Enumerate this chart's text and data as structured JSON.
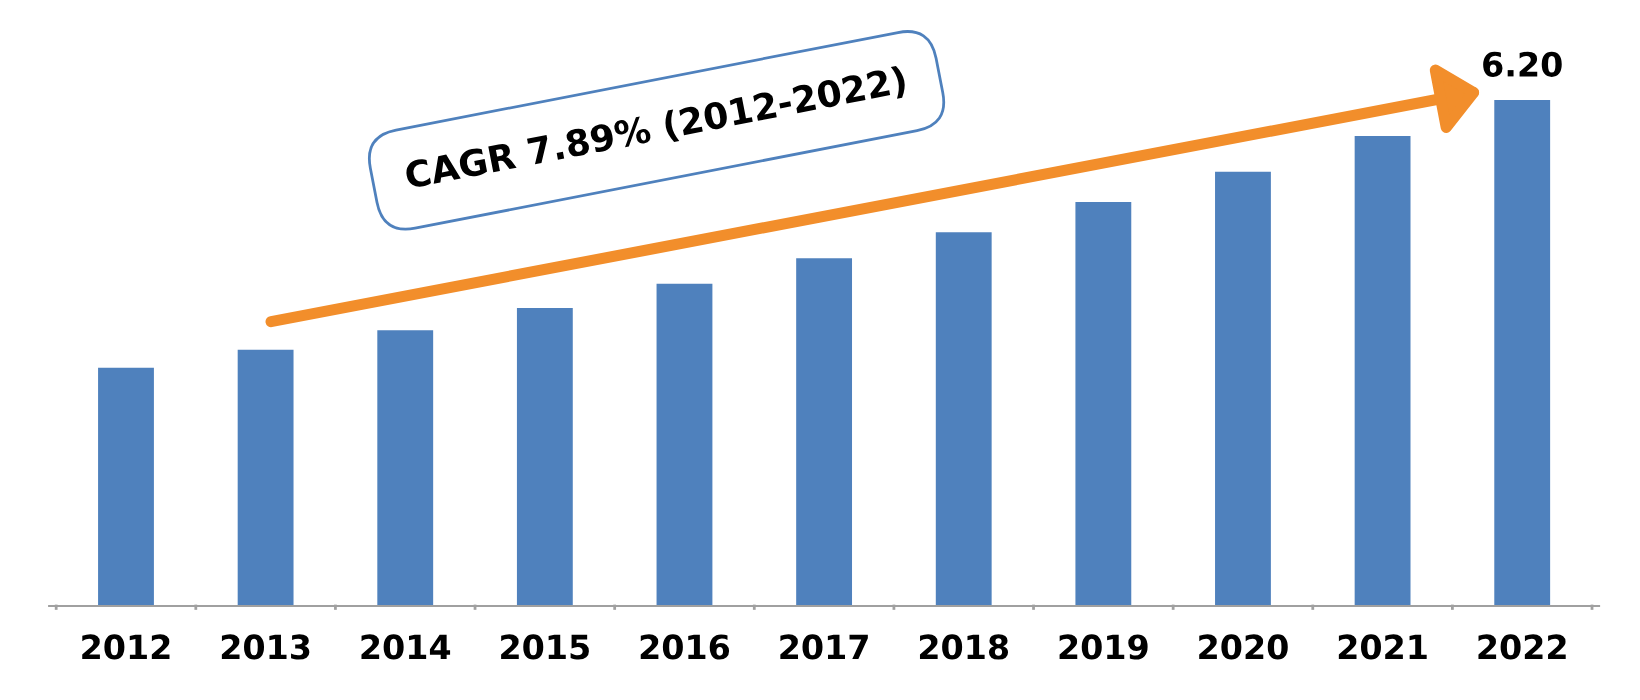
{
  "chart_data": {
    "type": "bar",
    "categories": [
      "2012",
      "2013",
      "2014",
      "2015",
      "2016",
      "2017",
      "2018",
      "2019",
      "2020",
      "2021",
      "2022"
    ],
    "values": [
      2.92,
      3.14,
      3.38,
      3.65,
      3.95,
      4.26,
      4.58,
      4.95,
      5.32,
      5.76,
      6.2
    ],
    "value_labels": [
      null,
      null,
      null,
      null,
      null,
      null,
      null,
      null,
      null,
      null,
      "6.20"
    ],
    "color": "#4f81bd",
    "annotations": [
      "CAGR 7.89% (2012-2022)"
    ],
    "grid": false,
    "legend": false
  }
}
